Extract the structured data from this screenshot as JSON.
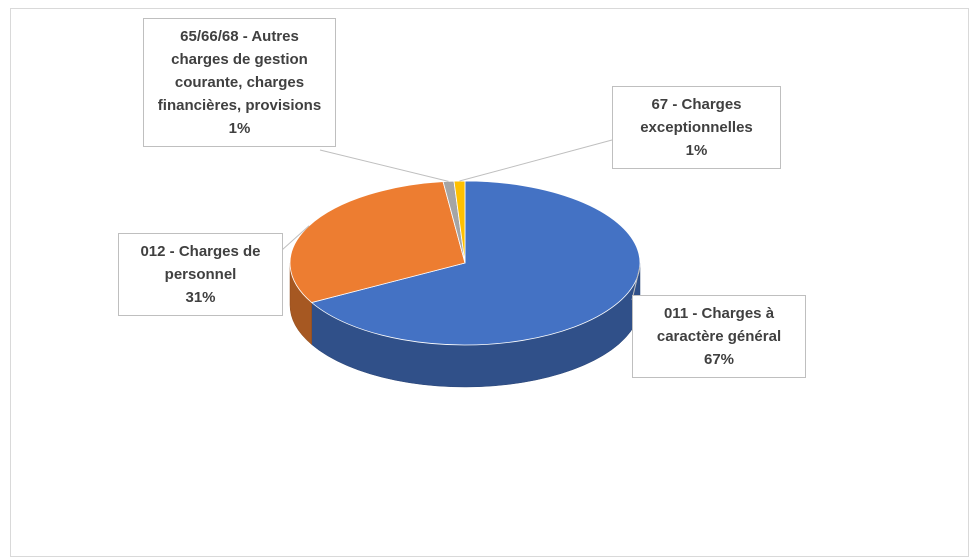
{
  "chart_data": {
    "type": "pie3d",
    "categories": [
      "011 - Charges à caractère général",
      "012 - Charges de personnel",
      "65/66/68 - Autres charges de gestion courante, charges financières, provisions",
      "67 - Charges exceptionnelles"
    ],
    "values": [
      67,
      31,
      1,
      1
    ],
    "value_labels": [
      "67%",
      "31%",
      "1%",
      "1%"
    ],
    "colors": [
      "#4472c4",
      "#ed7d31",
      "#a5a5a5",
      "#ffc000"
    ]
  }
}
